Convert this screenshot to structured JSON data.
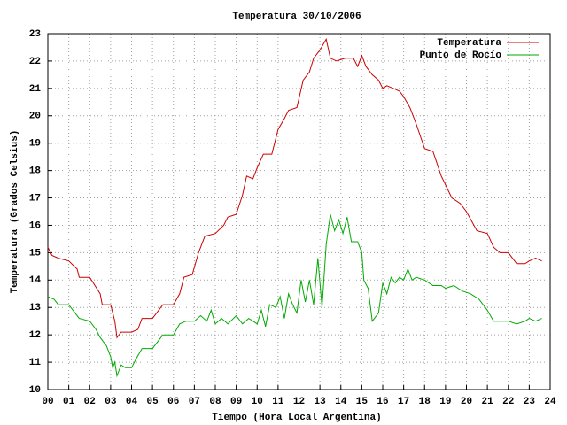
{
  "chart_data": {
    "type": "line",
    "title": "Temperatura 30/10/2006",
    "xlabel": "Tiempo (Hora Local Argentina)",
    "ylabel": "Temperatura (Grados Celsius)",
    "xlim": [
      0,
      24
    ],
    "ylim": [
      10,
      23
    ],
    "xticks": [
      {
        "value": 0,
        "label": "00"
      },
      {
        "value": 1,
        "label": "01"
      },
      {
        "value": 2,
        "label": "02"
      },
      {
        "value": 3,
        "label": "03"
      },
      {
        "value": 4,
        "label": "04"
      },
      {
        "value": 5,
        "label": "05"
      },
      {
        "value": 6,
        "label": "06"
      },
      {
        "value": 7,
        "label": "07"
      },
      {
        "value": 8,
        "label": "08"
      },
      {
        "value": 9,
        "label": "09"
      },
      10,
      11,
      12,
      13,
      14,
      15,
      16,
      17,
      18,
      19,
      20,
      21,
      22,
      23,
      24
    ],
    "yticks": [
      10,
      11,
      12,
      13,
      14,
      15,
      16,
      17,
      18,
      19,
      20,
      21,
      22,
      23
    ],
    "grid": true,
    "legend": "top-right",
    "series": [
      {
        "name": "Temperatura",
        "color": "#cc0000",
        "x": [
          0,
          0.2,
          0.5,
          1,
          1.4,
          1.5,
          2,
          2.5,
          2.6,
          3,
          3.2,
          3.3,
          3.5,
          4,
          4.3,
          4.5,
          5,
          5.5,
          6,
          6.3,
          6.5,
          6.9,
          7.2,
          7.5,
          8,
          8.4,
          8.6,
          9,
          9.3,
          9.5,
          9.8,
          10,
          10.3,
          10.7,
          11,
          11.3,
          11.5,
          11.9,
          12.2,
          12.5,
          12.7,
          13,
          13.3,
          13.5,
          13.8,
          14.2,
          14.6,
          14.8,
          15,
          15.2,
          15.5,
          15.8,
          16,
          16.2,
          16.5,
          16.8,
          17,
          17.3,
          17.6,
          18,
          18.4,
          18.8,
          19.3,
          19.7,
          20,
          20.5,
          21,
          21.3,
          21.6,
          22,
          22.4,
          22.8,
          23,
          23.3,
          23.6
        ],
        "values": [
          15.2,
          14.9,
          14.8,
          14.7,
          14.4,
          14.1,
          14.1,
          13.5,
          13.1,
          13.1,
          12.5,
          11.9,
          12.1,
          12.1,
          12.2,
          12.6,
          12.6,
          13.1,
          13.1,
          13.5,
          14.1,
          14.2,
          15.0,
          15.6,
          15.7,
          16.0,
          16.3,
          16.4,
          17.1,
          17.8,
          17.7,
          18.1,
          18.6,
          18.6,
          19.5,
          19.9,
          20.2,
          20.3,
          21.3,
          21.6,
          22.1,
          22.4,
          22.8,
          22.1,
          22.0,
          22.1,
          22.1,
          21.8,
          22.2,
          21.8,
          21.5,
          21.3,
          21.0,
          21.1,
          21.0,
          20.9,
          20.7,
          20.3,
          19.7,
          18.8,
          18.7,
          17.8,
          17.0,
          16.8,
          16.5,
          15.8,
          15.7,
          15.2,
          15.0,
          15.0,
          14.6,
          14.6,
          14.7,
          14.8,
          14.7
        ]
      },
      {
        "name": "Punto de Rocío",
        "color": "#00aa00",
        "x": [
          0,
          0.3,
          0.5,
          1,
          1.3,
          1.5,
          2,
          2.3,
          2.5,
          2.8,
          3,
          3.1,
          3.2,
          3.3,
          3.5,
          3.7,
          4,
          4.2,
          4.5,
          5,
          5.3,
          5.5,
          6,
          6.3,
          6.6,
          7,
          7.3,
          7.6,
          7.8,
          8,
          8.3,
          8.6,
          9,
          9.3,
          9.6,
          10,
          10.2,
          10.4,
          10.6,
          10.9,
          11.1,
          11.3,
          11.5,
          11.7,
          11.9,
          12.1,
          12.3,
          12.5,
          12.7,
          12.9,
          13.1,
          13.3,
          13.5,
          13.7,
          13.9,
          14.1,
          14.3,
          14.5,
          14.8,
          15,
          15.1,
          15.3,
          15.5,
          15.8,
          16,
          16.2,
          16.4,
          16.6,
          16.8,
          17,
          17.2,
          17.4,
          17.6,
          18,
          18.4,
          18.8,
          19,
          19.4,
          19.8,
          20.2,
          20.6,
          21,
          21.3,
          21.6,
          22,
          22.4,
          22.8,
          23,
          23.3,
          23.6
        ],
        "values": [
          13.4,
          13.3,
          13.1,
          13.1,
          12.8,
          12.6,
          12.5,
          12.2,
          11.9,
          11.6,
          11.2,
          10.8,
          11.0,
          10.5,
          10.9,
          10.8,
          10.8,
          11.1,
          11.5,
          11.5,
          11.8,
          12.0,
          12.0,
          12.4,
          12.5,
          12.5,
          12.7,
          12.5,
          12.9,
          12.4,
          12.6,
          12.4,
          12.7,
          12.4,
          12.6,
          12.4,
          12.9,
          12.3,
          13.1,
          13.0,
          13.4,
          12.6,
          13.5,
          13.1,
          12.8,
          14.0,
          13.2,
          14.0,
          13.1,
          14.8,
          13.0,
          15.3,
          16.4,
          15.8,
          16.2,
          15.7,
          16.3,
          15.4,
          15.4,
          15.0,
          14.0,
          13.7,
          12.5,
          12.8,
          13.9,
          13.5,
          14.1,
          13.9,
          14.1,
          14.0,
          14.4,
          14.0,
          14.1,
          14.0,
          13.8,
          13.8,
          13.7,
          13.8,
          13.6,
          13.5,
          13.3,
          12.9,
          12.5,
          12.5,
          12.5,
          12.4,
          12.5,
          12.6,
          12.5,
          12.6
        ]
      }
    ]
  }
}
